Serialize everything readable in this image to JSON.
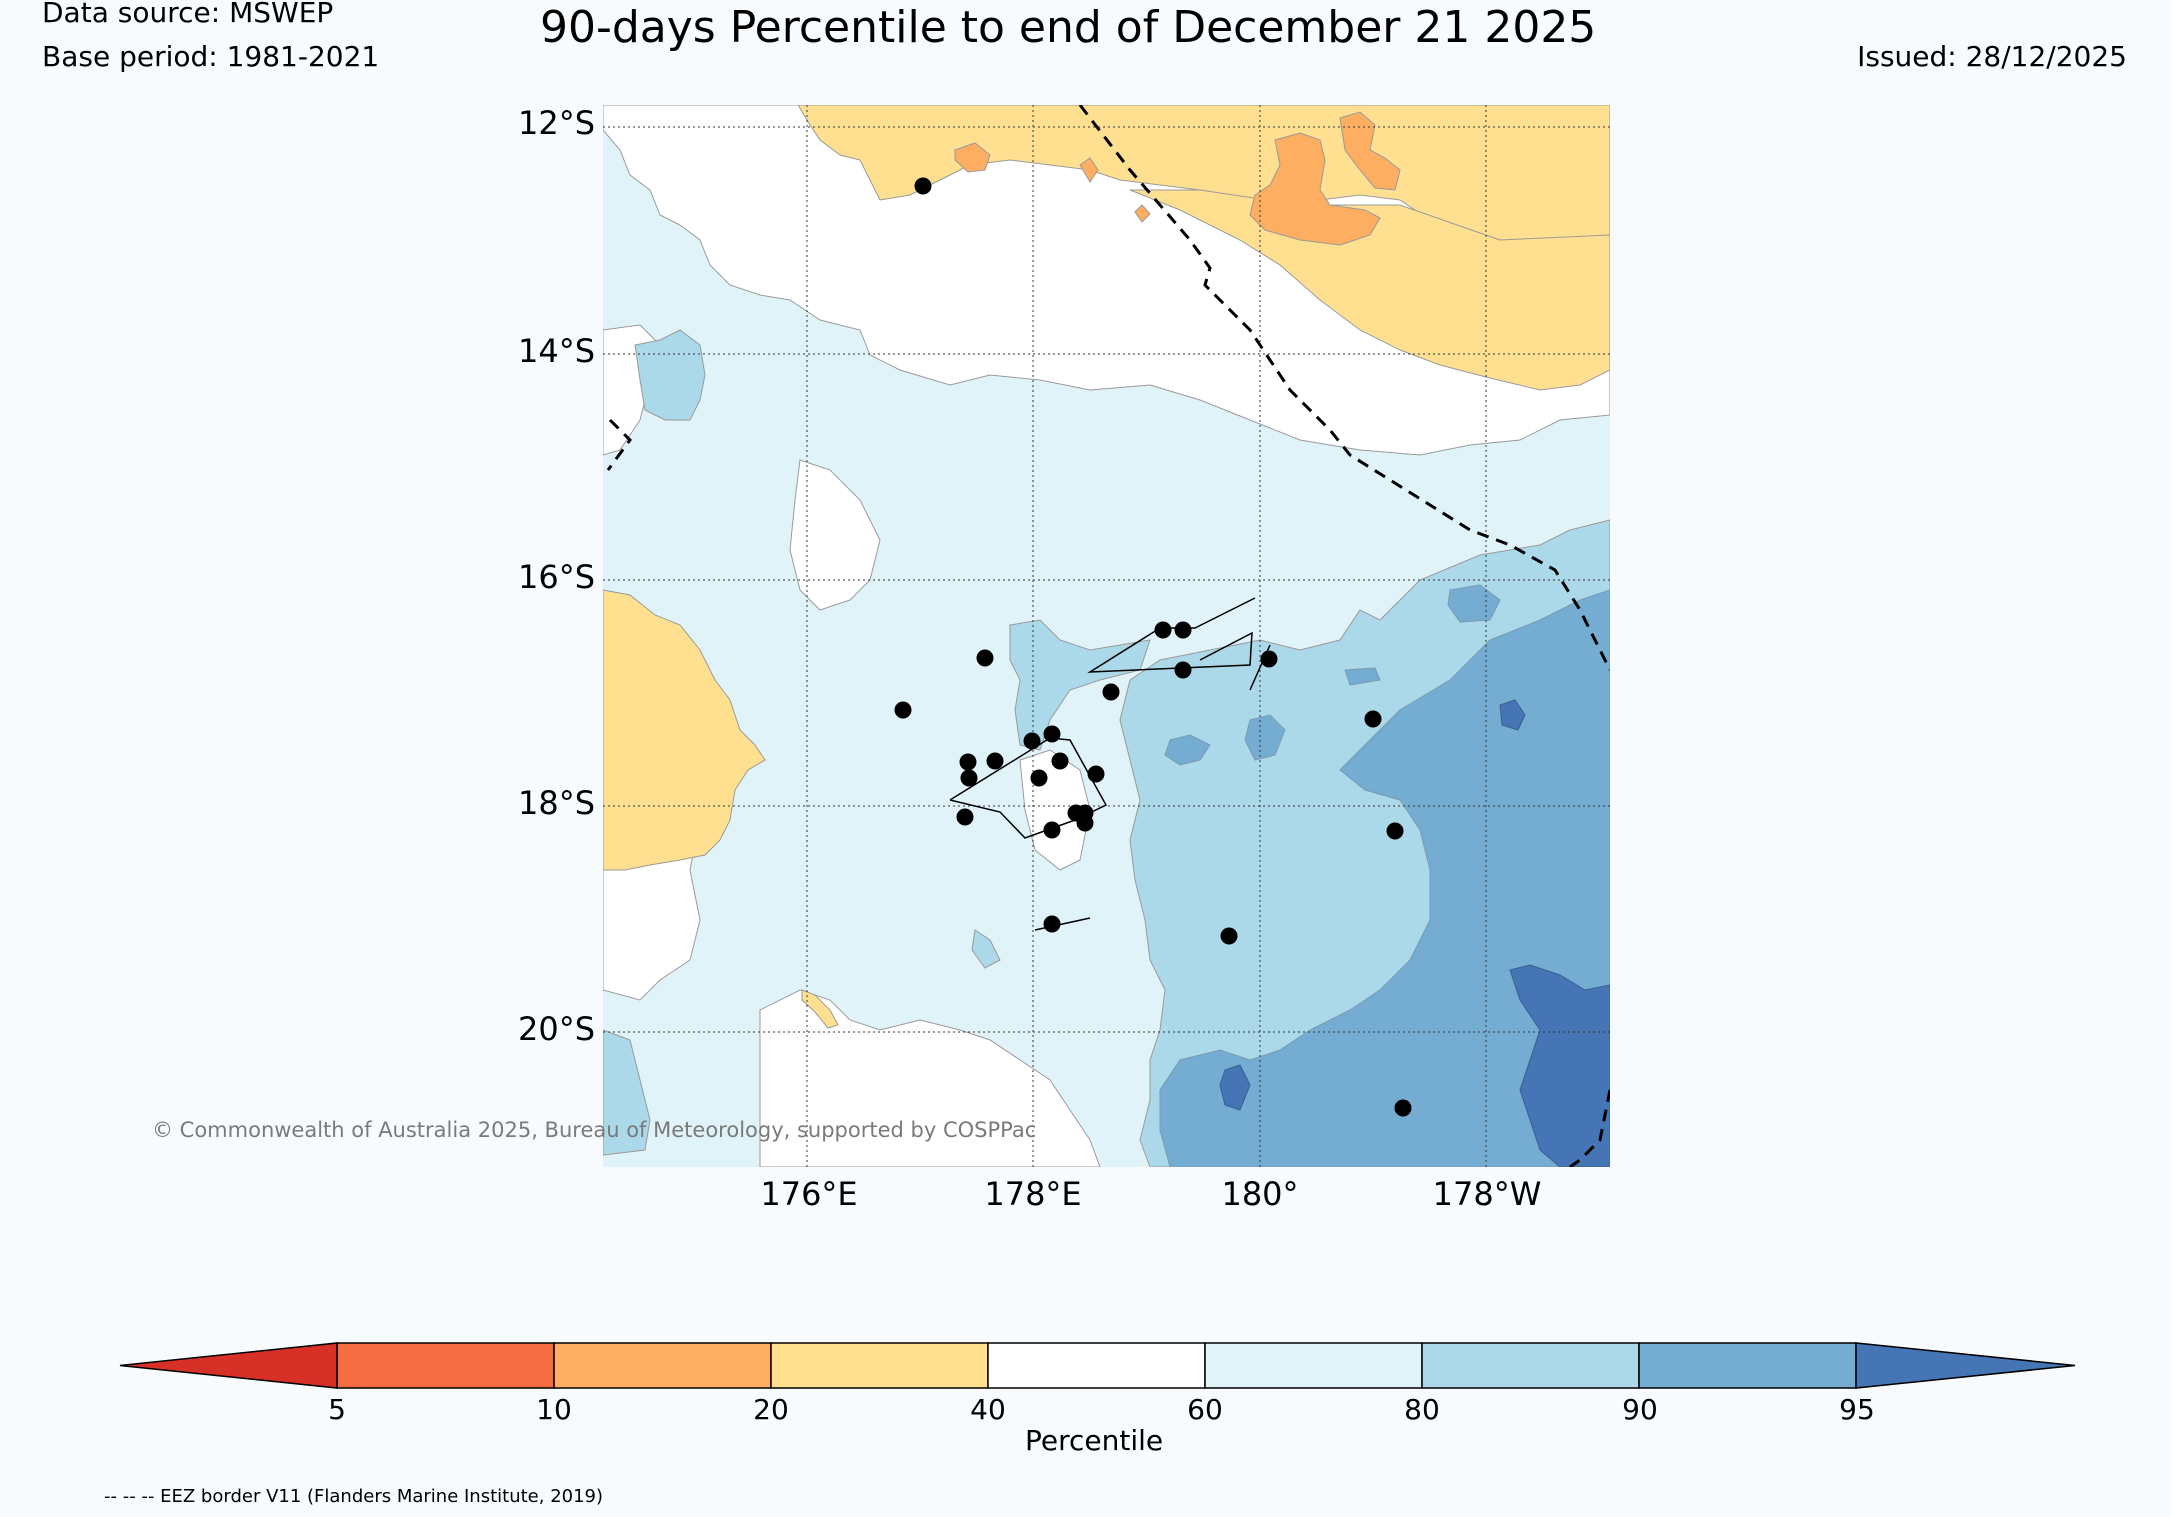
{
  "header": {
    "title": "90-days Percentile to end of December 21 2025",
    "data_source": "Data source: MSWEP",
    "base_period": "Base period: 1981-2021",
    "issued": "Issued: 28/12/2025"
  },
  "map": {
    "lat_labels": [
      "12°S",
      "14°S",
      "16°S",
      "18°S",
      "20°S"
    ],
    "lon_labels": [
      "176°E",
      "178°E",
      "180°",
      "178°W"
    ],
    "copyright": "© Commonwealth of Australia 2025, Bureau of Meteorology, supported by COSPPac",
    "station_count": 25
  },
  "colorbar": {
    "label": "Percentile",
    "ticks": [
      "5",
      "10",
      "20",
      "40",
      "60",
      "80",
      "90",
      "95"
    ],
    "colors": {
      "below_5": "#d73027",
      "5_10": "#f46d43",
      "10_20": "#fdae61",
      "20_40": "#fee090",
      "40_60": "#ffffff",
      "60_80": "#e0f3f8",
      "80_90": "#abd9e9",
      "90_95": "#74add1",
      "above_95": "#4575b4"
    }
  },
  "footer": {
    "eez_note": "-- -- -- EEZ border V11 (Flanders Marine Institute, 2019)"
  }
}
